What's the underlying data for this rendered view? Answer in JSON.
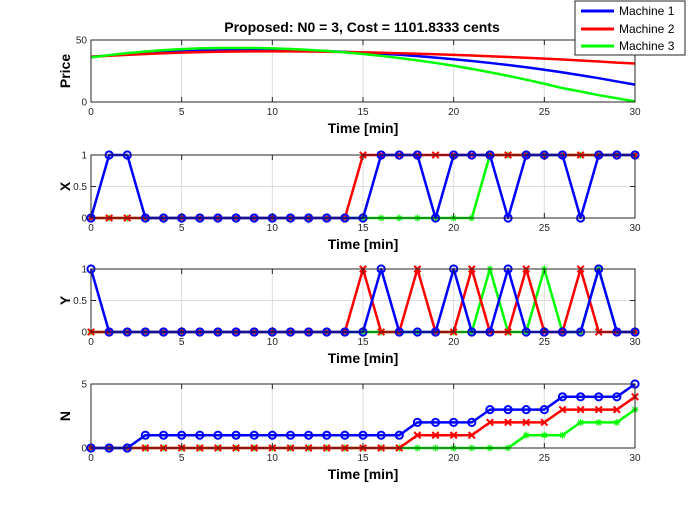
{
  "figure": {
    "title": "Proposed: N0 = 3, Cost = 1101.8333 cents"
  },
  "legend": {
    "position": "top-right",
    "entries": [
      "Machine 1",
      "Machine 2",
      "Machine 3"
    ]
  },
  "colors": {
    "machine1": "#0000ff",
    "machine2": "#ff0000",
    "machine3": "#00ff00",
    "marker_fill": "#008080"
  },
  "chart_data": [
    {
      "id": "price",
      "type": "line",
      "xlabel": "Time [min]",
      "ylabel": "Price",
      "xlim": [
        0,
        30
      ],
      "ylim": [
        0,
        50
      ],
      "xticks": [
        0,
        5,
        10,
        15,
        20,
        25,
        30
      ],
      "yticks": [
        0,
        50
      ],
      "grid": true,
      "markers": false,
      "x": [
        0,
        1,
        2,
        3,
        4,
        5,
        6,
        7,
        8,
        9,
        10,
        11,
        12,
        13,
        14,
        15,
        16,
        17,
        18,
        19,
        20,
        21,
        22,
        23,
        24,
        25,
        26,
        27,
        28,
        29,
        30
      ],
      "series": [
        {
          "name": "Machine 1",
          "color": "#0000ff",
          "values": [
            36.5,
            37.5,
            38.5,
            39.4,
            40.2,
            40.8,
            41.3,
            41.6,
            41.8,
            41.9,
            41.9,
            41.7,
            41.4,
            41.0,
            40.4,
            39.8,
            39.0,
            38.1,
            37.0,
            35.8,
            34.5,
            33.1,
            31.5,
            29.8,
            28.0,
            26.0,
            23.9,
            21.6,
            19.2,
            16.6,
            14.0
          ]
        },
        {
          "name": "Machine 2",
          "color": "#ff0000",
          "values": [
            36.5,
            37.3,
            38.0,
            38.7,
            39.3,
            39.8,
            40.2,
            40.5,
            40.7,
            40.8,
            40.8,
            40.8,
            40.7,
            40.5,
            40.3,
            40.0,
            39.7,
            39.3,
            38.9,
            38.5,
            38.0,
            37.5,
            36.9,
            36.3,
            35.7,
            35.0,
            34.3,
            33.5,
            32.7,
            31.8,
            31.0
          ]
        },
        {
          "name": "Machine 3",
          "color": "#00ff00",
          "values": [
            36.0,
            37.8,
            39.4,
            40.7,
            41.8,
            42.6,
            43.2,
            43.5,
            43.6,
            43.5,
            43.2,
            42.7,
            42.0,
            41.1,
            40.0,
            38.7,
            37.2,
            35.5,
            33.6,
            31.5,
            29.2,
            26.7,
            24.0,
            21.1,
            18.0,
            14.7,
            11.2,
            8.5,
            5.5,
            3.0,
            0.5
          ]
        }
      ]
    },
    {
      "id": "x",
      "type": "line",
      "xlabel": "Time [min]",
      "ylabel": "X",
      "xlim": [
        0,
        30
      ],
      "ylim": [
        0,
        1
      ],
      "xticks": [
        0,
        5,
        10,
        15,
        20,
        25,
        30
      ],
      "yticks": [
        0,
        0.5,
        1
      ],
      "ytick_labels": [
        "0",
        "0.5",
        "1"
      ],
      "grid": true,
      "markers": true,
      "x": [
        0,
        1,
        2,
        3,
        4,
        5,
        6,
        7,
        8,
        9,
        10,
        11,
        12,
        13,
        14,
        15,
        16,
        17,
        18,
        19,
        20,
        21,
        22,
        23,
        24,
        25,
        26,
        27,
        28,
        29,
        30
      ],
      "series": [
        {
          "name": "Machine 3",
          "color": "#00ff00",
          "marker": "*",
          "values": [
            0,
            0,
            0,
            0,
            0,
            0,
            0,
            0,
            0,
            0,
            0,
            0,
            0,
            0,
            0,
            0,
            0,
            0,
            0,
            0,
            0,
            0,
            1,
            1,
            1,
            1,
            1,
            1,
            1,
            1,
            1
          ]
        },
        {
          "name": "Machine 2",
          "color": "#ff0000",
          "marker": "x",
          "values": [
            0,
            0,
            0,
            0,
            0,
            0,
            0,
            0,
            0,
            0,
            0,
            0,
            0,
            0,
            0,
            1,
            1,
            1,
            1,
            1,
            1,
            1,
            1,
            1,
            1,
            1,
            1,
            1,
            1,
            1,
            1
          ]
        },
        {
          "name": "Machine 1",
          "color": "#0000ff",
          "marker": "o",
          "values": [
            0,
            1,
            1,
            0,
            0,
            0,
            0,
            0,
            0,
            0,
            0,
            0,
            0,
            0,
            0,
            0,
            1,
            1,
            1,
            0,
            1,
            1,
            1,
            0,
            1,
            1,
            1,
            0,
            1,
            1,
            1
          ]
        }
      ]
    },
    {
      "id": "y",
      "type": "line",
      "xlabel": "Time [min]",
      "ylabel": "Y",
      "xlim": [
        0,
        30
      ],
      "ylim": [
        0,
        1
      ],
      "xticks": [
        0,
        5,
        10,
        15,
        20,
        25,
        30
      ],
      "yticks": [
        0,
        0.5,
        1
      ],
      "ytick_labels": [
        "0",
        "0.5",
        "1"
      ],
      "grid": true,
      "markers": true,
      "x": [
        0,
        1,
        2,
        3,
        4,
        5,
        6,
        7,
        8,
        9,
        10,
        11,
        12,
        13,
        14,
        15,
        16,
        17,
        18,
        19,
        20,
        21,
        22,
        23,
        24,
        25,
        26,
        27,
        28,
        29,
        30
      ],
      "series": [
        {
          "name": "Machine 3",
          "color": "#00ff00",
          "marker": "*",
          "values": [
            0,
            0,
            0,
            0,
            0,
            0,
            0,
            0,
            0,
            0,
            0,
            0,
            0,
            0,
            0,
            0,
            0,
            0,
            0,
            0,
            0,
            0,
            1,
            0,
            0,
            1,
            0,
            0,
            1,
            0,
            0
          ]
        },
        {
          "name": "Machine 2",
          "color": "#ff0000",
          "marker": "x",
          "values": [
            0,
            0,
            0,
            0,
            0,
            0,
            0,
            0,
            0,
            0,
            0,
            0,
            0,
            0,
            0,
            1,
            0,
            0,
            1,
            0,
            0,
            1,
            0,
            0,
            1,
            0,
            0,
            1,
            0,
            0,
            0
          ]
        },
        {
          "name": "Machine 1",
          "color": "#0000ff",
          "marker": "o",
          "values": [
            1,
            0,
            0,
            0,
            0,
            0,
            0,
            0,
            0,
            0,
            0,
            0,
            0,
            0,
            0,
            0,
            1,
            0,
            0,
            0,
            1,
            0,
            0,
            1,
            0,
            0,
            0,
            0,
            1,
            0,
            0
          ]
        }
      ]
    },
    {
      "id": "n",
      "type": "line",
      "xlabel": "Time [min]",
      "ylabel": "N",
      "xlim": [
        0,
        30
      ],
      "ylim": [
        0,
        5
      ],
      "xticks": [
        0,
        5,
        10,
        15,
        20,
        25,
        30
      ],
      "yticks": [
        0,
        5
      ],
      "grid": true,
      "markers": true,
      "x": [
        0,
        1,
        2,
        3,
        4,
        5,
        6,
        7,
        8,
        9,
        10,
        11,
        12,
        13,
        14,
        15,
        16,
        17,
        18,
        19,
        20,
        21,
        22,
        23,
        24,
        25,
        26,
        27,
        28,
        29,
        30
      ],
      "series": [
        {
          "name": "Machine 3",
          "color": "#00ff00",
          "marker": "*",
          "values": [
            0,
            0,
            0,
            0,
            0,
            0,
            0,
            0,
            0,
            0,
            0,
            0,
            0,
            0,
            0,
            0,
            0,
            0,
            0,
            0,
            0,
            0,
            0,
            0,
            1,
            1,
            1,
            2,
            2,
            2,
            3
          ]
        },
        {
          "name": "Machine 2",
          "color": "#ff0000",
          "marker": "x",
          "values": [
            0,
            0,
            0,
            0,
            0,
            0,
            0,
            0,
            0,
            0,
            0,
            0,
            0,
            0,
            0,
            0,
            0,
            0,
            1,
            1,
            1,
            1,
            2,
            2,
            2,
            2,
            3,
            3,
            3,
            3,
            4
          ]
        },
        {
          "name": "Machine 1",
          "color": "#0000ff",
          "marker": "o",
          "values": [
            0,
            0,
            0,
            1,
            1,
            1,
            1,
            1,
            1,
            1,
            1,
            1,
            1,
            1,
            1,
            1,
            1,
            1,
            2,
            2,
            2,
            2,
            3,
            3,
            3,
            3,
            4,
            4,
            4,
            4,
            5
          ]
        }
      ]
    }
  ]
}
